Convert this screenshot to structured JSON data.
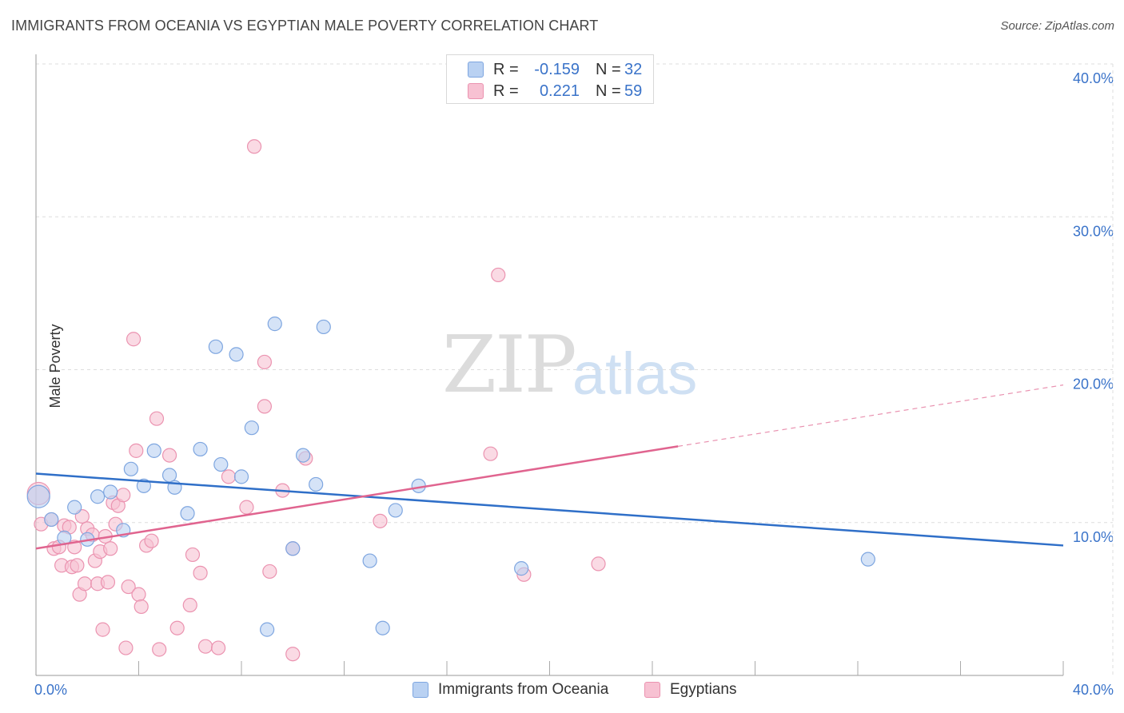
{
  "title": "IMMIGRANTS FROM OCEANIA VS EGYPTIAN MALE POVERTY CORRELATION CHART",
  "source": "Source: ZipAtlas.com",
  "watermark": {
    "part1": "ZIP",
    "part2": "atlas"
  },
  "legend": {
    "rows": [
      {
        "r_label": "R =",
        "r_value": "-0.159",
        "n_label": "N =",
        "n_value": "32"
      },
      {
        "r_label": "R =",
        "r_value": "0.221",
        "n_label": "N =",
        "n_value": "59"
      }
    ]
  },
  "bottom_legend": {
    "series1": "Immigrants from Oceania",
    "series2": "Egyptians"
  },
  "colors": {
    "blue_fill": "#b9d1f2",
    "blue_stroke": "#7ea6e0",
    "blue_line": "#2f6fc8",
    "pink_fill": "#f7c1d2",
    "pink_stroke": "#eb93b0",
    "pink_line": "#e0648f",
    "tick_label": "#3a73c9",
    "grid": "#dddddd"
  },
  "chart_data": {
    "type": "scatter",
    "title": "IMMIGRANTS FROM OCEANIA VS EGYPTIAN MALE POVERTY CORRELATION CHART",
    "xlabel": "",
    "ylabel": "Male Poverty",
    "xlim": [
      0,
      40
    ],
    "ylim": [
      0,
      40
    ],
    "x_tick_labels": [
      "0.0%",
      "40.0%"
    ],
    "y_ticks": [
      10,
      20,
      30,
      40
    ],
    "y_tick_labels": [
      "10.0%",
      "20.0%",
      "30.0%",
      "40.0%"
    ],
    "grid": true,
    "legend_position": "top-center",
    "series": [
      {
        "name": "Immigrants from Oceania",
        "r": -0.159,
        "n": 32,
        "trend": {
          "x": [
            0,
            40
          ],
          "y": [
            13.2,
            8.5
          ],
          "dashed_from": null
        },
        "points": [
          {
            "x": 0.1,
            "y": 11.7,
            "s": 3
          },
          {
            "x": 0.6,
            "y": 10.2,
            "s": 1
          },
          {
            "x": 1.1,
            "y": 9.0,
            "s": 1
          },
          {
            "x": 1.5,
            "y": 11.0,
            "s": 1
          },
          {
            "x": 2.0,
            "y": 8.9,
            "s": 1
          },
          {
            "x": 2.4,
            "y": 11.7,
            "s": 1
          },
          {
            "x": 2.9,
            "y": 12.0,
            "s": 1
          },
          {
            "x": 3.4,
            "y": 9.5,
            "s": 1
          },
          {
            "x": 3.7,
            "y": 13.5,
            "s": 1
          },
          {
            "x": 4.2,
            "y": 12.4,
            "s": 1
          },
          {
            "x": 4.6,
            "y": 14.7,
            "s": 1
          },
          {
            "x": 5.2,
            "y": 13.1,
            "s": 1
          },
          {
            "x": 5.4,
            "y": 12.3,
            "s": 1
          },
          {
            "x": 5.9,
            "y": 10.6,
            "s": 1
          },
          {
            "x": 6.4,
            "y": 14.8,
            "s": 1
          },
          {
            "x": 7.0,
            "y": 21.5,
            "s": 1
          },
          {
            "x": 7.2,
            "y": 13.8,
            "s": 1
          },
          {
            "x": 7.8,
            "y": 21.0,
            "s": 1
          },
          {
            "x": 8.0,
            "y": 13.0,
            "s": 1
          },
          {
            "x": 8.4,
            "y": 16.2,
            "s": 1
          },
          {
            "x": 9.0,
            "y": 3.0,
            "s": 1
          },
          {
            "x": 9.3,
            "y": 23.0,
            "s": 1
          },
          {
            "x": 10.0,
            "y": 8.3,
            "s": 1
          },
          {
            "x": 10.4,
            "y": 14.4,
            "s": 1
          },
          {
            "x": 10.9,
            "y": 12.5,
            "s": 1
          },
          {
            "x": 11.2,
            "y": 22.8,
            "s": 1
          },
          {
            "x": 13.0,
            "y": 7.5,
            "s": 1
          },
          {
            "x": 13.5,
            "y": 3.1,
            "s": 1
          },
          {
            "x": 14.0,
            "y": 10.8,
            "s": 1
          },
          {
            "x": 14.9,
            "y": 12.4,
            "s": 1
          },
          {
            "x": 18.9,
            "y": 7.0,
            "s": 1
          },
          {
            "x": 32.4,
            "y": 7.6,
            "s": 1
          }
        ]
      },
      {
        "name": "Egyptians",
        "r": 0.221,
        "n": 59,
        "trend": {
          "x": [
            0,
            40
          ],
          "y": [
            8.3,
            19.0
          ],
          "dashed_from": 25
        },
        "points": [
          {
            "x": 0.1,
            "y": 11.9,
            "s": 3
          },
          {
            "x": 0.2,
            "y": 9.9,
            "s": 1
          },
          {
            "x": 0.6,
            "y": 10.2,
            "s": 1
          },
          {
            "x": 0.7,
            "y": 8.3,
            "s": 1
          },
          {
            "x": 0.9,
            "y": 8.4,
            "s": 1
          },
          {
            "x": 1.0,
            "y": 7.2,
            "s": 1
          },
          {
            "x": 1.1,
            "y": 9.8,
            "s": 1
          },
          {
            "x": 1.3,
            "y": 9.7,
            "s": 1
          },
          {
            "x": 1.4,
            "y": 7.1,
            "s": 1
          },
          {
            "x": 1.5,
            "y": 8.4,
            "s": 1
          },
          {
            "x": 1.6,
            "y": 7.2,
            "s": 1
          },
          {
            "x": 1.7,
            "y": 5.3,
            "s": 1
          },
          {
            "x": 1.8,
            "y": 10.4,
            "s": 1
          },
          {
            "x": 1.9,
            "y": 6.0,
            "s": 1
          },
          {
            "x": 2.0,
            "y": 9.6,
            "s": 1
          },
          {
            "x": 2.2,
            "y": 9.2,
            "s": 1
          },
          {
            "x": 2.3,
            "y": 7.5,
            "s": 1
          },
          {
            "x": 2.4,
            "y": 6.0,
            "s": 1
          },
          {
            "x": 2.5,
            "y": 8.1,
            "s": 1
          },
          {
            "x": 2.6,
            "y": 3.0,
            "s": 1
          },
          {
            "x": 2.7,
            "y": 9.1,
            "s": 1
          },
          {
            "x": 2.8,
            "y": 6.1,
            "s": 1
          },
          {
            "x": 2.9,
            "y": 8.3,
            "s": 1
          },
          {
            "x": 3.0,
            "y": 11.3,
            "s": 1
          },
          {
            "x": 3.1,
            "y": 9.9,
            "s": 1
          },
          {
            "x": 3.2,
            "y": 11.1,
            "s": 1
          },
          {
            "x": 3.4,
            "y": 11.8,
            "s": 1
          },
          {
            "x": 3.5,
            "y": 1.8,
            "s": 1
          },
          {
            "x": 3.6,
            "y": 5.8,
            "s": 1
          },
          {
            "x": 3.8,
            "y": 22.0,
            "s": 1
          },
          {
            "x": 3.9,
            "y": 14.7,
            "s": 1
          },
          {
            "x": 4.0,
            "y": 5.3,
            "s": 1
          },
          {
            "x": 4.1,
            "y": 4.5,
            "s": 1
          },
          {
            "x": 4.3,
            "y": 8.5,
            "s": 1
          },
          {
            "x": 4.5,
            "y": 8.8,
            "s": 1
          },
          {
            "x": 4.7,
            "y": 16.8,
            "s": 1
          },
          {
            "x": 4.8,
            "y": 1.7,
            "s": 1
          },
          {
            "x": 5.2,
            "y": 14.4,
            "s": 1
          },
          {
            "x": 5.5,
            "y": 3.1,
            "s": 1
          },
          {
            "x": 6.0,
            "y": 4.6,
            "s": 1
          },
          {
            "x": 6.1,
            "y": 7.9,
            "s": 1
          },
          {
            "x": 6.4,
            "y": 6.7,
            "s": 1
          },
          {
            "x": 6.6,
            "y": 1.9,
            "s": 1
          },
          {
            "x": 7.1,
            "y": 1.8,
            "s": 1
          },
          {
            "x": 8.2,
            "y": 11.0,
            "s": 1
          },
          {
            "x": 8.5,
            "y": 34.6,
            "s": 1
          },
          {
            "x": 8.9,
            "y": 20.5,
            "s": 1
          },
          {
            "x": 8.9,
            "y": 17.6,
            "s": 1
          },
          {
            "x": 9.1,
            "y": 6.8,
            "s": 1
          },
          {
            "x": 10.0,
            "y": 1.4,
            "s": 1
          },
          {
            "x": 10.5,
            "y": 14.2,
            "s": 1
          },
          {
            "x": 13.4,
            "y": 10.1,
            "s": 1
          },
          {
            "x": 17.7,
            "y": 14.5,
            "s": 1
          },
          {
            "x": 18.0,
            "y": 26.2,
            "s": 1
          },
          {
            "x": 19.0,
            "y": 6.6,
            "s": 1
          },
          {
            "x": 21.9,
            "y": 7.3,
            "s": 1
          },
          {
            "x": 10.0,
            "y": 8.3,
            "s": 1
          },
          {
            "x": 7.5,
            "y": 13.0,
            "s": 1
          },
          {
            "x": 9.6,
            "y": 12.1,
            "s": 1
          }
        ]
      }
    ]
  }
}
